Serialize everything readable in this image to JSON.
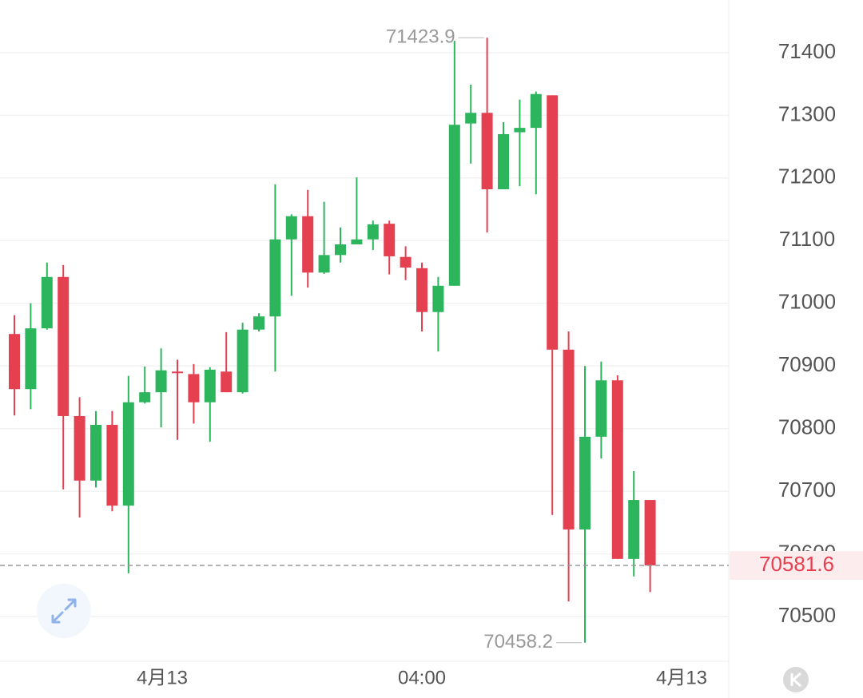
{
  "chart_data": {
    "type": "candlestick",
    "open": [
      70951,
      70863,
      70960,
      71042,
      70820,
      70717,
      70806,
      70677,
      70842,
      70858,
      70891,
      70887,
      70842,
      70891,
      70858,
      70958,
      70979,
      71102,
      71139,
      71049,
      71077,
      71094,
      71102,
      71127,
      71074,
      71056,
      70986,
      71028,
      71287,
      71304,
      71182,
      71273,
      71280,
      71332,
      70926,
      70639,
      70787,
      70877,
      70592,
      70686
    ],
    "high": [
      70981,
      71000,
      71065,
      71061,
      70850,
      70828,
      70828,
      70884,
      70899,
      70928,
      70910,
      70903,
      70898,
      70954,
      70969,
      70984,
      71190,
      71142,
      71181,
      71162,
      71121,
      71201,
      71132,
      71132,
      71091,
      71065,
      71042,
      71419,
      71349,
      71423.9,
      71289,
      71325,
      71338,
      71332,
      70955,
      70900,
      70907,
      70885,
      70732,
      70686
    ],
    "low": [
      70821,
      70831,
      70958,
      70703,
      70658,
      70706,
      70668,
      70569,
      70840,
      70802,
      70782,
      70808,
      70779,
      70858,
      70856,
      70955,
      70891,
      71012,
      71025,
      71047,
      71065,
      71094,
      71085,
      71046,
      71037,
      70955,
      70923,
      71028,
      71223,
      71113,
      71182,
      71187,
      71174,
      70662,
      70524,
      70458.2,
      70752,
      70592,
      70564,
      70539
    ],
    "close": [
      70863,
      70960,
      71042,
      70820,
      70717,
      70806,
      70677,
      70842,
      70858,
      70893,
      70889,
      70842,
      70894,
      70858,
      70958,
      70979,
      71102,
      71139,
      71049,
      71077,
      71094,
      71102,
      71126,
      71075,
      71057,
      70986,
      71028,
      71285,
      71304,
      71182,
      71270,
      71280,
      71334,
      70926,
      70639,
      70787,
      70877,
      70592,
      70686,
      70581.6
    ],
    "up_color": "#2db55d",
    "down_color": "#e5404f",
    "ylim": [
      70428.6,
      71484.1
    ],
    "yticks": [
      70500,
      70600,
      70700,
      70800,
      70900,
      71000,
      71100,
      71200,
      71300,
      71400
    ],
    "grid": true,
    "max_price": 71423.9,
    "min_price": 70458.2,
    "last_price": 70581.6,
    "x_labels": [
      "4月13",
      "04:00",
      "4月13"
    ]
  }
}
